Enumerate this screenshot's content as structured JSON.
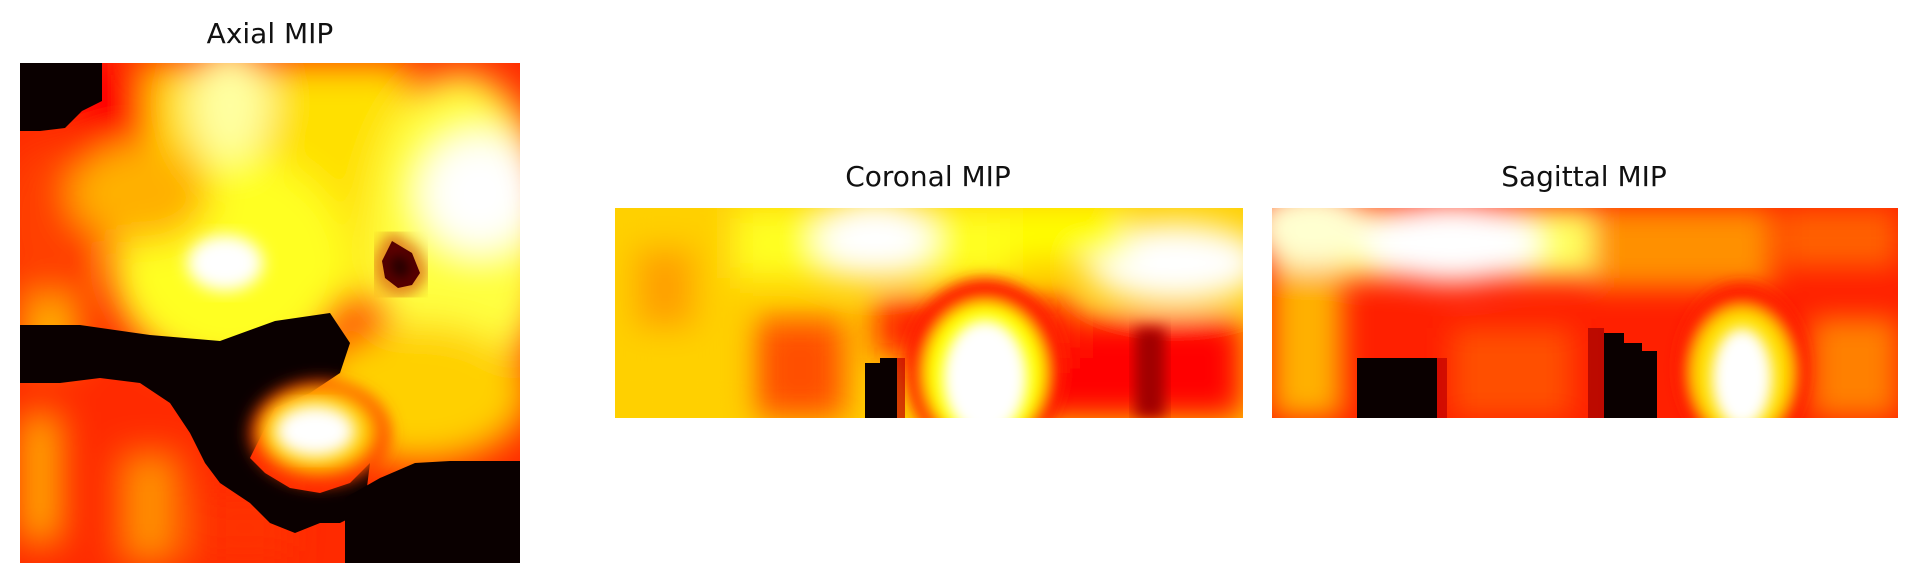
{
  "figure": {
    "panels": [
      {
        "title": "Axial MIP",
        "colormap": "hot"
      },
      {
        "title": "Coronal MIP",
        "colormap": "hot"
      },
      {
        "title": "Sagittal MIP",
        "colormap": "hot"
      }
    ]
  },
  "colors": {
    "black": "#0a0000",
    "dark_red": "#8b0000",
    "red": "#ff0000",
    "orange": "#ff8c00",
    "yellow": "#ffff00",
    "white": "#ffffff"
  }
}
